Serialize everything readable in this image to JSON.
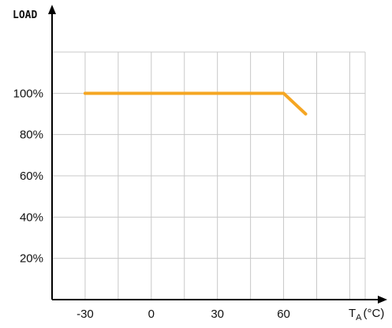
{
  "chart_data": {
    "type": "line",
    "ylabel": "LOAD",
    "xlabel_main": "T",
    "xlabel_sub": "A",
    "xlabel_unit": "(°C)",
    "x_ticks": [
      -30,
      0,
      30,
      60
    ],
    "x_tick_labels": [
      "-30",
      "0",
      "30",
      "60"
    ],
    "y_ticks": [
      20,
      40,
      60,
      80,
      100
    ],
    "y_tick_labels": [
      "20%",
      "40%",
      "60%",
      "80%",
      "100%"
    ],
    "x_grid": [
      -45,
      -30,
      -15,
      0,
      15,
      30,
      45,
      60,
      75,
      90
    ],
    "y_grid": [
      20,
      40,
      60,
      80,
      100,
      120
    ],
    "xlim": [
      -45,
      97
    ],
    "ylim": [
      0,
      120
    ],
    "grid": true,
    "series": [
      {
        "color": "#f5a623",
        "x": [
          -30,
          60,
          70
        ],
        "y": [
          100,
          100,
          90
        ]
      }
    ]
  }
}
